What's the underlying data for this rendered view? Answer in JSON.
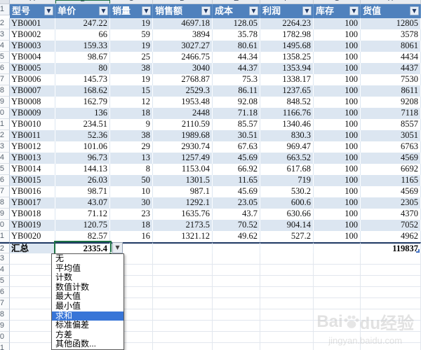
{
  "colors": {
    "header_bg": "#4F81BD",
    "band_row_bg": "#DCE6F1",
    "selection_blue": "#3875D7",
    "active_cell_border": "#1E7145",
    "total_border": "#1F3864"
  },
  "column_letters": [
    "A",
    "B",
    "C",
    "D",
    "E",
    "F",
    "G",
    "H"
  ],
  "active_column_letter": "B",
  "table": {
    "columns": [
      {
        "key": "model",
        "label": "型号"
      },
      {
        "key": "unit_price",
        "label": "单价"
      },
      {
        "key": "sales_qty",
        "label": "销量"
      },
      {
        "key": "sales_revenue",
        "label": "销售额"
      },
      {
        "key": "cost",
        "label": "成本"
      },
      {
        "key": "profit",
        "label": "利润"
      },
      {
        "key": "stock",
        "label": "库存"
      },
      {
        "key": "stock_value",
        "label": "货值"
      }
    ],
    "rows": [
      [
        "YB0001",
        "247.22",
        "19",
        "4697.18",
        "128.05",
        "2264.23",
        "100",
        "12805"
      ],
      [
        "YB0002",
        "66",
        "59",
        "3894",
        "35.78",
        "1782.98",
        "100",
        "3578"
      ],
      [
        "YB0003",
        "159.33",
        "19",
        "3027.27",
        "80.61",
        "1495.68",
        "100",
        "8061"
      ],
      [
        "YB0004",
        "98.67",
        "25",
        "2466.75",
        "44.34",
        "1358.25",
        "100",
        "4434"
      ],
      [
        "YB0005",
        "80",
        "38",
        "3040",
        "44.37",
        "1353.94",
        "100",
        "4437"
      ],
      [
        "YB0006",
        "145.73",
        "19",
        "2768.87",
        "75.3",
        "1338.17",
        "100",
        "7530"
      ],
      [
        "YB0007",
        "168.62",
        "15",
        "2529.3",
        "86.11",
        "1237.65",
        "100",
        "8611"
      ],
      [
        "YB0008",
        "162.79",
        "12",
        "1953.48",
        "92.08",
        "848.52",
        "100",
        "9208"
      ],
      [
        "YB0009",
        "136",
        "18",
        "2448",
        "71.18",
        "1166.76",
        "100",
        "7118"
      ],
      [
        "YB0010",
        "234.51",
        "9",
        "2110.59",
        "85.57",
        "1340.46",
        "100",
        "8557"
      ],
      [
        "YB0011",
        "52.36",
        "38",
        "1989.68",
        "30.51",
        "830.3",
        "100",
        "3051"
      ],
      [
        "YB0012",
        "101.06",
        "29",
        "2930.74",
        "67.63",
        "969.47",
        "100",
        "6763"
      ],
      [
        "YB0013",
        "96.73",
        "13",
        "1257.49",
        "45.69",
        "663.52",
        "100",
        "4569"
      ],
      [
        "YB0014",
        "144.13",
        "8",
        "1153.04",
        "66.92",
        "617.68",
        "100",
        "6692"
      ],
      [
        "YB0015",
        "26.03",
        "50",
        "1301.5",
        "11.65",
        "719",
        "100",
        "1165"
      ],
      [
        "YB0016",
        "98.71",
        "10",
        "987.1",
        "45.69",
        "530.2",
        "100",
        "4569"
      ],
      [
        "YB0017",
        "43.07",
        "30",
        "1292.1",
        "23.05",
        "600.6",
        "100",
        "2305"
      ],
      [
        "YB0018",
        "71.12",
        "23",
        "1635.76",
        "43.7",
        "630.66",
        "100",
        "4370"
      ],
      [
        "YB0019",
        "120.75",
        "18",
        "2173.5",
        "70.52",
        "904.14",
        "100",
        "7052"
      ],
      [
        "YB0020",
        "82.57",
        "16",
        "1321.12",
        "49.62",
        "527.2",
        "100",
        "4962"
      ]
    ],
    "summary": {
      "label": "汇总",
      "unit_price_total": "2335.4",
      "stock_value_total": "119837"
    }
  },
  "row_numbers": {
    "header_row": "1",
    "first_data_row": 2,
    "summary_row": "22",
    "empty_rows": [
      "23",
      "24",
      "25",
      "26",
      "27",
      "28",
      "29",
      "30",
      "31"
    ]
  },
  "function_dropdown": {
    "items": [
      "无",
      "平均值",
      "计数",
      "数值计数",
      "最大值",
      "最小值",
      "求和",
      "标准偏差",
      "方差",
      "其他函数..."
    ],
    "selected": "求和",
    "arrow": "▼"
  },
  "filter_arrow": "▼",
  "watermark": {
    "brand_prefix": "Bai",
    "brand_suffix": "du经验",
    "url": "jingyan.baidu.com"
  }
}
